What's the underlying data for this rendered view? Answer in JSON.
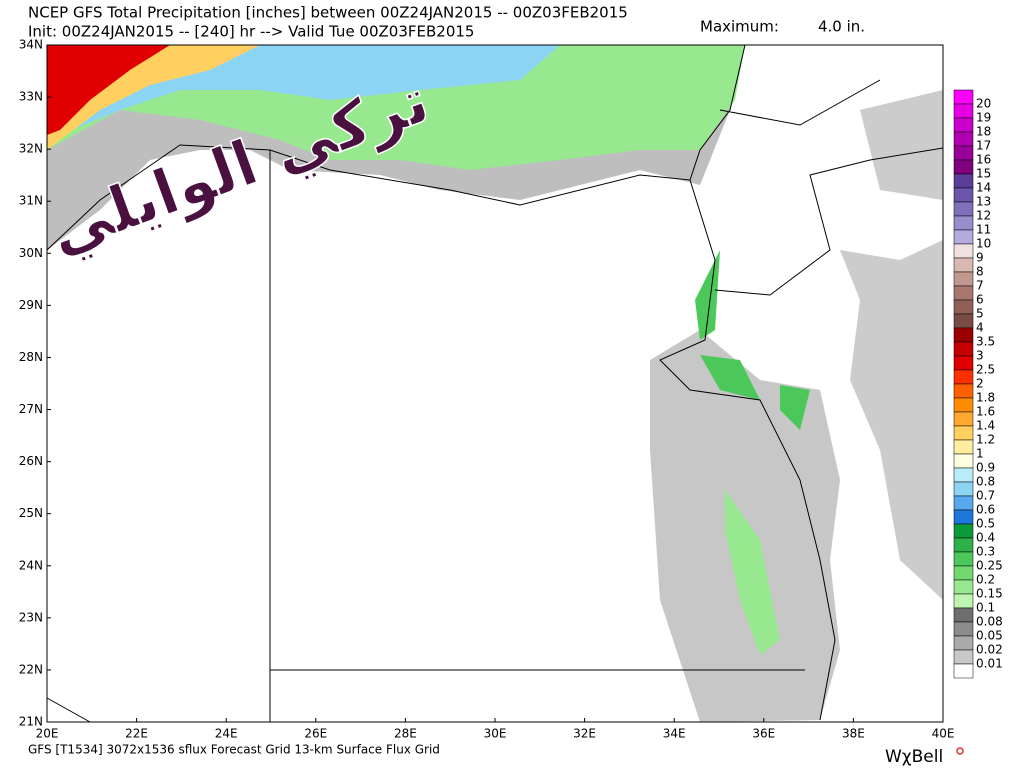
{
  "header": {
    "title": "NCEP GFS Total Precipitation [inches] between 00Z24JAN2015 -- 00Z03FEB2015",
    "subtitle": "Init: 00Z24JAN2015 -- [240] hr --> Valid Tue 00Z03FEB2015",
    "maximum_label": "Maximum:",
    "maximum_value": "4.0 in."
  },
  "map": {
    "lat_labels": [
      "34N",
      "33N",
      "32N",
      "31N",
      "30N",
      "29N",
      "28N",
      "27N",
      "26N",
      "25N",
      "24N",
      "23N",
      "22N",
      "21N"
    ],
    "lon_labels": [
      "20E",
      "22E",
      "24E",
      "26E",
      "28E",
      "30E",
      "32E",
      "34E",
      "36E",
      "38E",
      "40E"
    ],
    "watermark": "تركي الوايلي"
  },
  "legend": {
    "labels": [
      "20",
      "19",
      "18",
      "17",
      "16",
      "15",
      "14",
      "13",
      "12",
      "11",
      "10",
      "9",
      "8",
      "7",
      "6",
      "5",
      "4",
      "3.5",
      "3",
      "2.5",
      "2",
      "1.8",
      "1.6",
      "1.4",
      "1.2",
      "1",
      "0.9",
      "0.8",
      "0.7",
      "0.6",
      "0.5",
      "0.4",
      "0.3",
      "0.25",
      "0.2",
      "0.15",
      "0.1",
      "0.08",
      "0.05",
      "0.02",
      "0.01"
    ],
    "colors": [
      "#ff00ff",
      "#e600e6",
      "#cc00cc",
      "#b000b0",
      "#990099",
      "#80007f",
      "#5a3d99",
      "#6a55aa",
      "#8070bb",
      "#9a8dcc",
      "#b5aadd",
      "#f0e0e0",
      "#d8b8b0",
      "#c09890",
      "#a87870",
      "#906058",
      "#7a4a44",
      "#9a0000",
      "#c40000",
      "#e00000",
      "#ff3000",
      "#ff6000",
      "#ff8c00",
      "#ffa830",
      "#ffd060",
      "#ffeea0",
      "#fdfde0",
      "#b8ecf8",
      "#8cd4f4",
      "#58a8ee",
      "#1e78dc",
      "#0a9a3a",
      "#2eb04a",
      "#4cc85a",
      "#74d870",
      "#98e890",
      "#bff5b0",
      "#6e6e6e",
      "#8c8c8c",
      "#aaaaaa",
      "#c8c8c8",
      "#ffffff"
    ]
  },
  "footer": {
    "left": "GFS [T1534] 3072x1536 sflux Forecast Grid 13-km Surface Flux Grid",
    "brand": "WχBell"
  }
}
